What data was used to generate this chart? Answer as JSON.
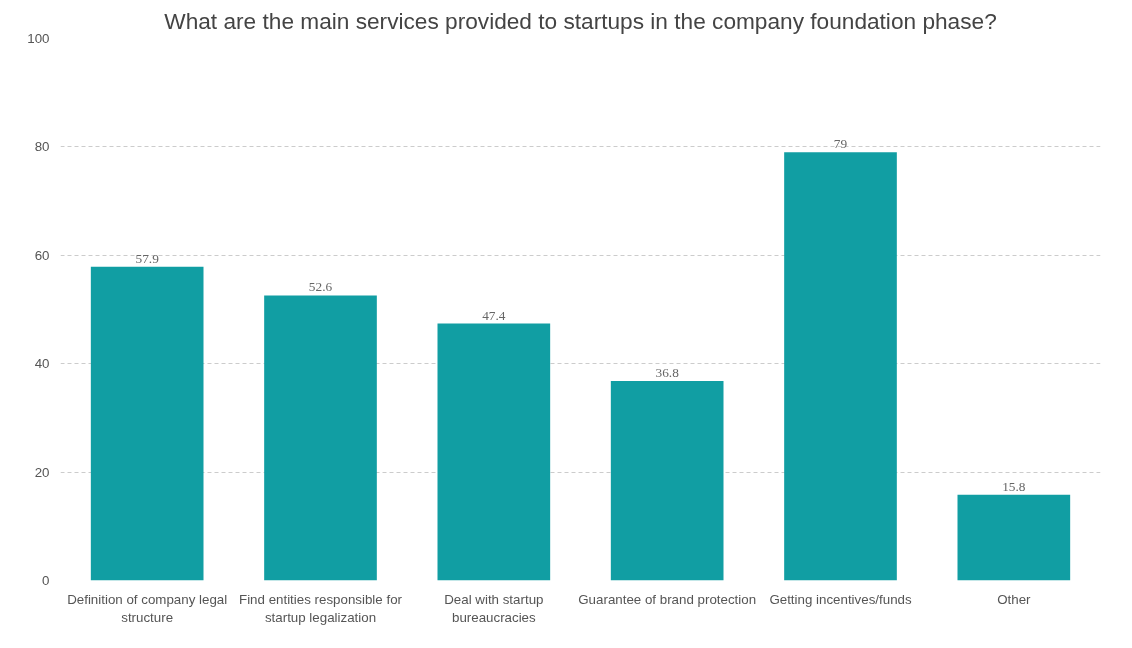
{
  "chart_data": {
    "type": "bar",
    "title": "What are the main services provided to startups in the company foundation phase?",
    "categories": [
      "Definition of company legal structure",
      "Find entities responsible for startup legalization",
      "Deal with startup bureaucracies",
      "Guarantee of brand protection",
      "Getting incentives/funds",
      "Other"
    ],
    "values": [
      57.9,
      52.6,
      47.4,
      36.8,
      79,
      15.8
    ],
    "color": "#119ea3",
    "ylim": [
      0,
      100
    ],
    "yticks": [
      0,
      20,
      40,
      60,
      80,
      100
    ],
    "grid": "y",
    "data_labels": true
  }
}
